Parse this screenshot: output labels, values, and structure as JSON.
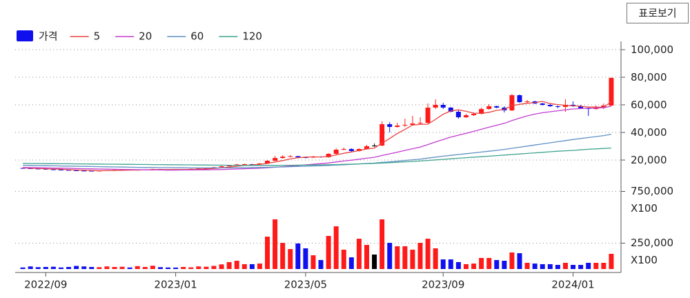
{
  "chart_data": {
    "type": "candlestick",
    "button": "표로보기",
    "price_label": "가격",
    "up_color": "#ff1a1a",
    "down_color": "#1010ee",
    "flat_color": "#000000",
    "grid": true,
    "xlim": [
      -1,
      78
    ],
    "xticks": [
      {
        "value": 3,
        "label": "2022/09"
      },
      {
        "value": 20,
        "label": "2023/01"
      },
      {
        "value": 37,
        "label": "2023/05"
      },
      {
        "value": 55,
        "label": "2023/09"
      },
      {
        "value": 72,
        "label": "2024/01"
      }
    ],
    "ylim": [
      4000,
      106000
    ],
    "yticks": [
      {
        "value": 20000,
        "label": "20,000"
      },
      {
        "value": 40000,
        "label": "40,000"
      },
      {
        "value": 60000,
        "label": "60,000"
      },
      {
        "value": 80000,
        "label": "80,000"
      },
      {
        "value": 100000,
        "label": "100,000"
      }
    ],
    "volume_ylim": [
      0,
      850000
    ],
    "volume_yticks": [
      {
        "value": 250000,
        "label": "250,000\nX100"
      },
      {
        "value": 750000,
        "label": "750,000\nX100"
      }
    ],
    "ohlc": [
      [
        14200,
        14500,
        13800,
        14000
      ],
      [
        14000,
        14300,
        13600,
        13800
      ],
      [
        13800,
        14000,
        13400,
        13600
      ],
      [
        13600,
        13800,
        13000,
        13200
      ],
      [
        13200,
        13500,
        12800,
        13000
      ],
      [
        13000,
        13200,
        12600,
        12800
      ],
      [
        12800,
        13000,
        12300,
        12500
      ],
      [
        12500,
        12700,
        12100,
        12300
      ],
      [
        12300,
        12500,
        12000,
        12200
      ],
      [
        12200,
        12400,
        11800,
        12000
      ],
      [
        12000,
        12500,
        11900,
        12300
      ],
      [
        12300,
        12700,
        12200,
        12500
      ],
      [
        12500,
        13000,
        12400,
        12800
      ],
      [
        12800,
        13200,
        12600,
        13000
      ],
      [
        13000,
        13100,
        12500,
        12700
      ],
      [
        12700,
        13100,
        12600,
        12900
      ],
      [
        12900,
        13300,
        12800,
        13100
      ],
      [
        13100,
        13600,
        13000,
        13400
      ],
      [
        13400,
        13500,
        13000,
        13200
      ],
      [
        13200,
        13400,
        12800,
        13000
      ],
      [
        13000,
        13100,
        12600,
        12800
      ],
      [
        12800,
        13500,
        12700,
        13300
      ],
      [
        13300,
        13800,
        13200,
        13600
      ],
      [
        13600,
        14100,
        13500,
        13900
      ],
      [
        13900,
        14400,
        13800,
        14200
      ],
      [
        14200,
        15000,
        14100,
        14800
      ],
      [
        14800,
        15800,
        14700,
        15500
      ],
      [
        15500,
        16500,
        15300,
        16200
      ],
      [
        16200,
        17200,
        16000,
        16800
      ],
      [
        16800,
        17400,
        16500,
        17000
      ],
      [
        17000,
        17300,
        16500,
        16800
      ],
      [
        16800,
        17800,
        16600,
        17500
      ],
      [
        17500,
        20000,
        17300,
        19500
      ],
      [
        19500,
        23000,
        19200,
        21500
      ],
      [
        21500,
        23500,
        21000,
        22500
      ],
      [
        22500,
        23500,
        22000,
        22800
      ],
      [
        22800,
        23000,
        21500,
        22000
      ],
      [
        22000,
        22500,
        21300,
        21800
      ],
      [
        21800,
        23000,
        21500,
        22500
      ],
      [
        22500,
        22800,
        21700,
        22000
      ],
      [
        22000,
        25000,
        21800,
        24500
      ],
      [
        24500,
        28500,
        24000,
        27500
      ],
      [
        27500,
        29000,
        27000,
        28000
      ],
      [
        28000,
        28500,
        26000,
        26500
      ],
      [
        26500,
        28500,
        26200,
        28000
      ],
      [
        28000,
        31000,
        27800,
        30000
      ],
      [
        30500,
        32000,
        29500,
        30500
      ],
      [
        30500,
        48000,
        30000,
        46000
      ],
      [
        46000,
        47500,
        40000,
        44000
      ],
      [
        44000,
        47000,
        43500,
        45000
      ],
      [
        45000,
        50000,
        44000,
        45500
      ],
      [
        45500,
        52000,
        45000,
        46500
      ],
      [
        46500,
        51000,
        45500,
        47000
      ],
      [
        47000,
        61000,
        46500,
        58000
      ],
      [
        58000,
        64000,
        57000,
        60000
      ],
      [
        60000,
        61500,
        57000,
        58000
      ],
      [
        58000,
        58500,
        54500,
        55000
      ],
      [
        55000,
        56000,
        50000,
        51000
      ],
      [
        51000,
        53500,
        50500,
        52500
      ],
      [
        52500,
        54500,
        52000,
        53500
      ],
      [
        53500,
        58000,
        53000,
        57000
      ],
      [
        57000,
        60500,
        56500,
        59000
      ],
      [
        59000,
        59500,
        57500,
        58000
      ],
      [
        58000,
        59000,
        54500,
        56000
      ],
      [
        56000,
        68000,
        55500,
        67000
      ],
      [
        67000,
        67500,
        61500,
        62000
      ],
      [
        62000,
        63500,
        61500,
        62500
      ],
      [
        62500,
        63000,
        60500,
        61000
      ],
      [
        61000,
        61500,
        59500,
        60000
      ],
      [
        60000,
        60500,
        58500,
        59000
      ],
      [
        59000,
        59500,
        57500,
        58500
      ],
      [
        58500,
        64000,
        55000,
        60000
      ],
      [
        60000,
        62500,
        58500,
        59000
      ],
      [
        59000,
        60000,
        57000,
        57500
      ],
      [
        57500,
        58500,
        52000,
        57000
      ],
      [
        57000,
        59500,
        56500,
        58000
      ],
      [
        58000,
        61000,
        57000,
        59500
      ],
      [
        59500,
        80000,
        59000,
        79500
      ]
    ],
    "volume": [
      15000,
      25000,
      18000,
      20000,
      22000,
      15000,
      20000,
      30000,
      25000,
      20000,
      18000,
      25000,
      20000,
      22000,
      15000,
      28000,
      20000,
      32000,
      18000,
      15000,
      14000,
      20000,
      16000,
      25000,
      22000,
      30000,
      45000,
      67000,
      80000,
      47000,
      47000,
      53000,
      313000,
      480000,
      253000,
      193000,
      247000,
      200000,
      133000,
      87000,
      320000,
      413000,
      187000,
      113000,
      293000,
      233000,
      140000,
      480000,
      253000,
      220000,
      220000,
      187000,
      253000,
      293000,
      200000,
      93000,
      93000,
      67000,
      47000,
      53000,
      107000,
      107000,
      87000,
      80000,
      160000,
      153000,
      60000,
      53000,
      47000,
      47000,
      40000,
      60000,
      40000,
      40000,
      60000,
      60000,
      60000,
      147000
    ],
    "series": [
      {
        "name": "5",
        "color": "#e8413c",
        "values": [
          14300,
          14100,
          13900,
          13700,
          13500,
          13300,
          13000,
          12800,
          12600,
          12400,
          12300,
          12300,
          12400,
          12600,
          12700,
          12800,
          12900,
          13000,
          13100,
          13100,
          13100,
          13100,
          13200,
          13400,
          13600,
          13900,
          14300,
          14900,
          15500,
          16100,
          16500,
          16900,
          17500,
          18600,
          19600,
          20800,
          21700,
          22100,
          22300,
          22200,
          22600,
          23700,
          24900,
          25800,
          26900,
          28000,
          28600,
          32200,
          35600,
          39200,
          42200,
          45400,
          45800,
          46000,
          49500,
          53200,
          55600,
          56400,
          55300,
          54000,
          53800,
          54600,
          56000,
          56700,
          59400,
          60400,
          61100,
          61700,
          62500,
          60900,
          60200,
          59700,
          59300,
          59000,
          58400,
          58400,
          58200,
          62300
        ]
      },
      {
        "name": "20",
        "color": "#c23bd0",
        "values": [
          14600,
          14500,
          14400,
          14300,
          14200,
          14100,
          14000,
          13800,
          13700,
          13600,
          13500,
          13400,
          13300,
          13200,
          13100,
          13000,
          12900,
          12800,
          12800,
          12700,
          12700,
          12800,
          12800,
          12900,
          12900,
          13000,
          13100,
          13300,
          13500,
          13700,
          13900,
          14100,
          14400,
          14800,
          15200,
          15700,
          16100,
          16500,
          17000,
          17400,
          17900,
          18600,
          19300,
          19900,
          20600,
          21300,
          22000,
          23300,
          24500,
          25700,
          27000,
          28200,
          29400,
          31200,
          33100,
          34900,
          36600,
          38000,
          39400,
          40800,
          42300,
          43800,
          45200,
          46600,
          48600,
          50400,
          52000,
          53300,
          54300,
          55000,
          55700,
          56400,
          57000,
          57300,
          57500,
          57700,
          57900,
          59000
        ]
      },
      {
        "name": "60",
        "color": "#5f8fc4",
        "values": [
          16200,
          16100,
          16000,
          15900,
          15800,
          15700,
          15600,
          15500,
          15400,
          15300,
          15200,
          15100,
          15000,
          14900,
          14800,
          14700,
          14600,
          14600,
          14500,
          14500,
          14400,
          14400,
          14300,
          14300,
          14300,
          14300,
          14300,
          14300,
          14400,
          14400,
          14500,
          14600,
          14700,
          14900,
          15000,
          15200,
          15400,
          15500,
          15700,
          15900,
          16100,
          16400,
          16600,
          16900,
          17200,
          17500,
          17800,
          18300,
          18700,
          19200,
          19700,
          20200,
          20700,
          21400,
          22100,
          22800,
          23400,
          24000,
          24600,
          25200,
          25800,
          26400,
          27000,
          27700,
          28500,
          29300,
          30100,
          30900,
          31700,
          32500,
          33300,
          34100,
          34900,
          35600,
          36300,
          37000,
          37700,
          38700
        ]
      },
      {
        "name": "120",
        "color": "#3ea38f",
        "values": [
          17600,
          17500,
          17500,
          17400,
          17400,
          17300,
          17300,
          17200,
          17200,
          17100,
          17100,
          17000,
          17000,
          16900,
          16900,
          16800,
          16800,
          16700,
          16700,
          16600,
          16600,
          16500,
          16500,
          16400,
          16400,
          16300,
          16300,
          16200,
          16200,
          16100,
          16100,
          16100,
          16100,
          16100,
          16200,
          16200,
          16300,
          16300,
          16400,
          16500,
          16600,
          16700,
          16900,
          17000,
          17200,
          17400,
          17600,
          17800,
          18100,
          18400,
          18700,
          19000,
          19300,
          19700,
          20100,
          20500,
          20900,
          21300,
          21700,
          22100,
          22400,
          22800,
          23200,
          23600,
          24000,
          24400,
          24800,
          25200,
          25600,
          26000,
          26400,
          26700,
          27000,
          27400,
          27800,
          28100,
          28400,
          28700
        ]
      }
    ]
  }
}
